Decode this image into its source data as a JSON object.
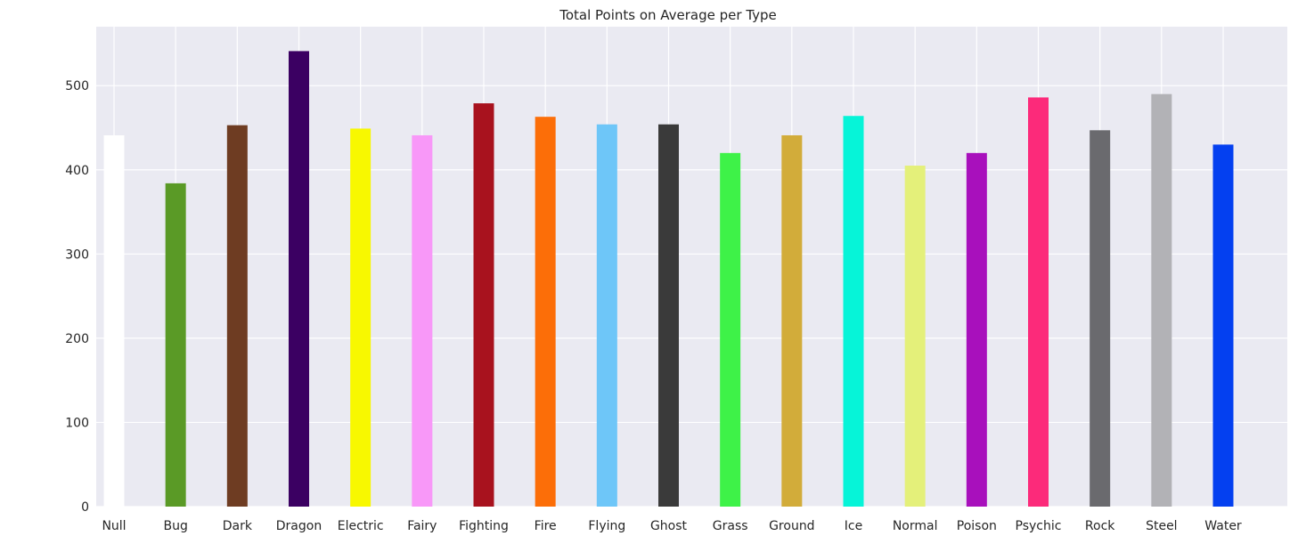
{
  "chart_data": {
    "type": "bar",
    "title": "Total Points on Average per Type",
    "xlabel": "",
    "ylabel": "",
    "categories": [
      "Null",
      "Bug",
      "Dark",
      "Dragon",
      "Electric",
      "Fairy",
      "Fighting",
      "Fire",
      "Flying",
      "Ghost",
      "Grass",
      "Ground",
      "Ice",
      "Normal",
      "Poison",
      "Psychic",
      "Rock",
      "Steel",
      "Water"
    ],
    "values": [
      441,
      384,
      453,
      541,
      449,
      441,
      479,
      463,
      454,
      454,
      420,
      441,
      464,
      405,
      420,
      486,
      447,
      490,
      430
    ],
    "colors": [
      "#ffffff",
      "#5a9a26",
      "#6e3c22",
      "#3b0062",
      "#f8f800",
      "#f898f8",
      "#a8121e",
      "#fc6e08",
      "#6ec6f8",
      "#3a3a3a",
      "#3ef248",
      "#d2ac3a",
      "#06f4d8",
      "#e4f07a",
      "#a810bc",
      "#fc2a7a",
      "#6a6a6e",
      "#b2b2b6",
      "#0440f0"
    ],
    "ylim": [
      0,
      570
    ],
    "yticks": [
      0,
      100,
      200,
      300,
      400,
      500
    ],
    "grid": true,
    "background_color": "#eaeaf2",
    "grid_color": "#ffffff"
  }
}
